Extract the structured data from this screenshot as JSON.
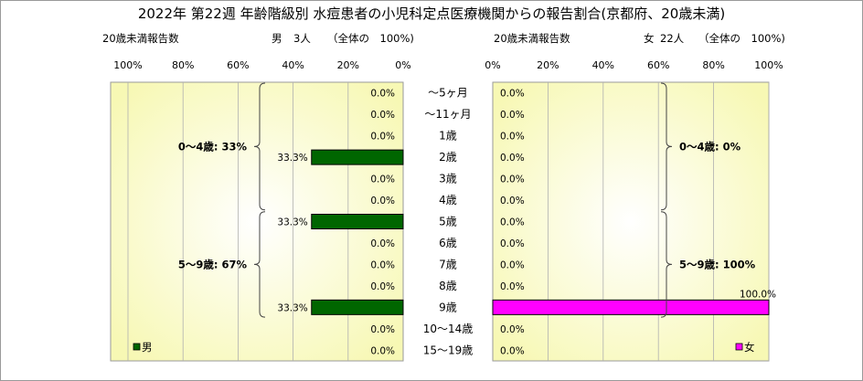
{
  "title": "2022年 第22週 年齢階級別 水痘患者の小児科定点医療機関からの報告割合(京都府、20歳未満)",
  "left_header": {
    "count_label": "20歳未満報告数",
    "sex": "男",
    "count": "3人",
    "share": "（全体の　100%)"
  },
  "right_header": {
    "count_label": "20歳未満報告数",
    "sex": "女",
    "count": "22人",
    "share": "（全体の　100%)"
  },
  "chart_data": {
    "type": "bar",
    "orientation": "horizontal-pyramid",
    "categories": [
      "～5ヶ月",
      "～11ヶ月",
      "1歳",
      "2歳",
      "3歳",
      "4歳",
      "5歳",
      "6歳",
      "7歳",
      "8歳",
      "9歳",
      "10～14歳",
      "15～19歳"
    ],
    "axis_ticks": [
      "0%",
      "20%",
      "40%",
      "60%",
      "80%",
      "100%"
    ],
    "xlim": [
      0,
      100
    ],
    "grid": true,
    "series": [
      {
        "name": "男",
        "side": "left",
        "color": "#006600",
        "values": [
          0.0,
          0.0,
          0.0,
          33.3,
          0.0,
          0.0,
          33.3,
          0.0,
          0.0,
          0.0,
          33.3,
          0.0,
          0.0
        ],
        "labels": [
          "0.0%",
          "0.0%",
          "0.0%",
          "33.3%",
          "0.0%",
          "0.0%",
          "33.3%",
          "0.0%",
          "0.0%",
          "0.0%",
          "33.3%",
          "0.0%",
          "0.0%"
        ]
      },
      {
        "name": "女",
        "side": "right",
        "color": "#ff00ff",
        "values": [
          0.0,
          0.0,
          0.0,
          0.0,
          0.0,
          0.0,
          0.0,
          0.0,
          0.0,
          0.0,
          100.0,
          0.0,
          0.0
        ],
        "labels": [
          "0.0%",
          "0.0%",
          "0.0%",
          "0.0%",
          "0.0%",
          "0.0%",
          "0.0%",
          "0.0%",
          "0.0%",
          "0.0%",
          "100.0%",
          "0.0%",
          "0.0%"
        ]
      }
    ],
    "group_annotations": {
      "left": [
        {
          "label": "0～4歳: 33%",
          "from": 0,
          "to": 5
        },
        {
          "label": "5～9歳: 67%",
          "from": 6,
          "to": 10
        }
      ],
      "right": [
        {
          "label": "0～4歳: 0%",
          "from": 0,
          "to": 5
        },
        {
          "label": "5～9歳: 100%",
          "from": 6,
          "to": 10
        }
      ]
    },
    "legend_position": "bottom-inside"
  }
}
